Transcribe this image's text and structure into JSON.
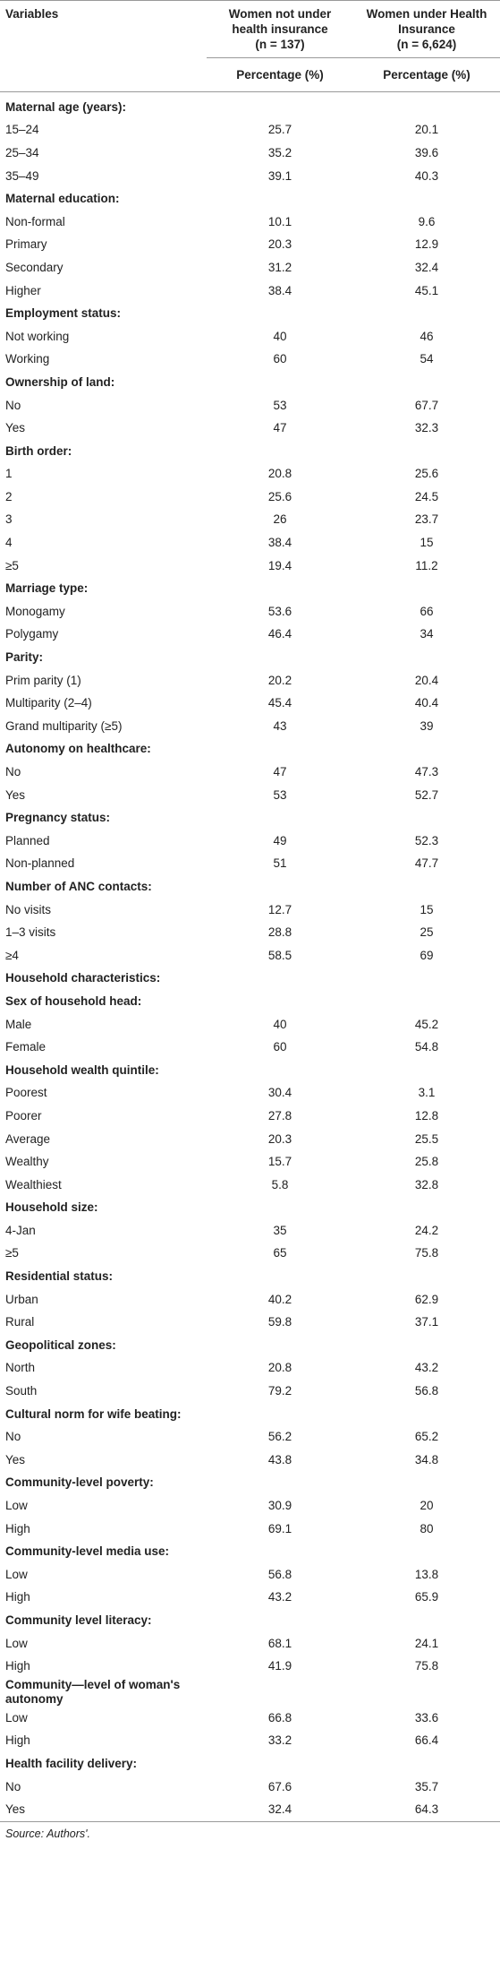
{
  "table": {
    "columns": [
      "Variables",
      "Women not under health insurance",
      "Women under Health Insurance"
    ],
    "sample_sizes": [
      "(n = 137)",
      "(n = 6,624)"
    ],
    "units": [
      "Percentage (%)",
      "Percentage (%)"
    ],
    "rows": [
      [
        "Maternal age (years):"
      ],
      [
        "15–24",
        "25.7",
        "20.1"
      ],
      [
        "25–34",
        "35.2",
        "39.6"
      ],
      [
        "35–49",
        "39.1",
        "40.3"
      ],
      [
        "Maternal education:"
      ],
      [
        "Non-formal",
        "10.1",
        "9.6"
      ],
      [
        "Primary",
        "20.3",
        "12.9"
      ],
      [
        "Secondary",
        "31.2",
        "32.4"
      ],
      [
        "Higher",
        "38.4",
        "45.1"
      ],
      [
        "Employment status:"
      ],
      [
        "Not working",
        "40",
        "46"
      ],
      [
        "Working",
        "60",
        "54"
      ],
      [
        "Ownership of land:"
      ],
      [
        "No",
        "53",
        "67.7"
      ],
      [
        "Yes",
        "47",
        "32.3"
      ],
      [
        "Birth order:"
      ],
      [
        "1",
        "20.8",
        "25.6"
      ],
      [
        "2",
        "25.6",
        "24.5"
      ],
      [
        "3",
        "26",
        "23.7"
      ],
      [
        "4",
        "38.4",
        "15"
      ],
      [
        "≥5",
        "19.4",
        "11.2"
      ],
      [
        "Marriage type:"
      ],
      [
        "Monogamy",
        "53.6",
        "66"
      ],
      [
        "Polygamy",
        "46.4",
        "34"
      ],
      [
        "Parity:"
      ],
      [
        "Prim parity (1)",
        "20.2",
        "20.4"
      ],
      [
        "Multiparity (2–4)",
        "45.4",
        "40.4"
      ],
      [
        "Grand multiparity (≥5)",
        "43",
        "39"
      ],
      [
        "Autonomy on healthcare:"
      ],
      [
        "No",
        "47",
        "47.3"
      ],
      [
        "Yes",
        "53",
        "52.7"
      ],
      [
        "Pregnancy status:"
      ],
      [
        "Planned",
        "49",
        "52.3"
      ],
      [
        "Non-planned",
        "51",
        "47.7"
      ],
      [
        "Number of ANC contacts:"
      ],
      [
        "No visits",
        "12.7",
        "15"
      ],
      [
        "1–3 visits",
        "28.8",
        "25"
      ],
      [
        "≥4",
        "58.5",
        "69"
      ],
      [
        "Household characteristics:"
      ],
      [
        "Sex of household head:"
      ],
      [
        "Male",
        "40",
        "45.2"
      ],
      [
        "Female",
        "60",
        "54.8"
      ],
      [
        "Household wealth quintile:"
      ],
      [
        "Poorest",
        "30.4",
        "3.1"
      ],
      [
        "Poorer",
        "27.8",
        "12.8"
      ],
      [
        "Average",
        "20.3",
        "25.5"
      ],
      [
        "Wealthy",
        "15.7",
        "25.8"
      ],
      [
        "Wealthiest",
        "5.8",
        "32.8"
      ],
      [
        "Household size:"
      ],
      [
        "4-Jan",
        "35",
        "24.2"
      ],
      [
        "≥5",
        "65",
        "75.8"
      ],
      [
        "Residential status:"
      ],
      [
        "Urban",
        "40.2",
        "62.9"
      ],
      [
        "Rural",
        "59.8",
        "37.1"
      ],
      [
        "Geopolitical zones:"
      ],
      [
        "North",
        "20.8",
        "43.2"
      ],
      [
        "South",
        "79.2",
        "56.8"
      ],
      [
        "Cultural norm for wife beating:"
      ],
      [
        "No",
        "56.2",
        "65.2"
      ],
      [
        "Yes",
        "43.8",
        "34.8"
      ],
      [
        "Community-level poverty:"
      ],
      [
        "Low",
        "30.9",
        "20"
      ],
      [
        "High",
        "69.1",
        "80"
      ],
      [
        "Community-level media use:"
      ],
      [
        "Low",
        "56.8",
        "13.8"
      ],
      [
        "High",
        "43.2",
        "65.9"
      ],
      [
        "Community level literacy:"
      ],
      [
        "Low",
        "68.1",
        "24.1"
      ],
      [
        "High",
        "41.9",
        "75.8"
      ],
      [
        "Community—level of woman's autonomy"
      ],
      [
        "Low",
        "66.8",
        "33.6"
      ],
      [
        "High",
        "33.2",
        "66.4"
      ],
      [
        "Health facility delivery:"
      ],
      [
        "No",
        "67.6",
        "35.7"
      ],
      [
        "Yes",
        "32.4",
        "64.3"
      ]
    ],
    "source": "Source: Authors'."
  }
}
